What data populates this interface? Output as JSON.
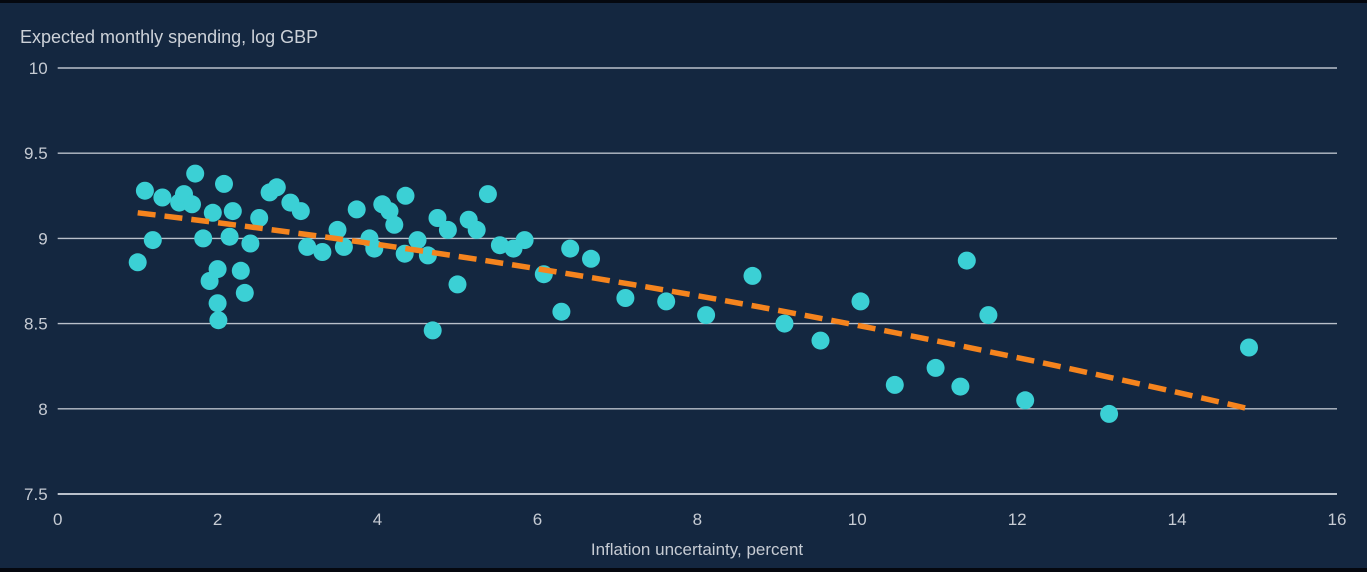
{
  "chart_data": {
    "type": "scatter",
    "title": "Expected monthly spending, log GBP",
    "xlabel": "Inflation uncertainty, percent",
    "ylabel": "",
    "xlim": [
      0,
      16
    ],
    "ylim": [
      7.5,
      10
    ],
    "grid": "horizontal-only",
    "legend": "none",
    "colors": {
      "background": "#142740",
      "points": "#3BD0D5",
      "trend": "#F5841E",
      "gridline": "#b9c0ca",
      "text": "#c6cbd3"
    },
    "xticks": [
      {
        "v": 0,
        "label": "0"
      },
      {
        "v": 2,
        "label": "2"
      },
      {
        "v": 4,
        "label": "4"
      },
      {
        "v": 6,
        "label": "6"
      },
      {
        "v": 8,
        "label": "8"
      },
      {
        "v": 10,
        "label": "10"
      },
      {
        "v": 12,
        "label": "12"
      },
      {
        "v": 14,
        "label": "14"
      },
      {
        "v": 16,
        "label": "16"
      }
    ],
    "yticks": [
      {
        "v": 10,
        "label": "10"
      },
      {
        "v": 9.5,
        "label": "9.5"
      },
      {
        "v": 9,
        "label": "9"
      },
      {
        "v": 8.5,
        "label": "8.5"
      },
      {
        "v": 8,
        "label": "8"
      },
      {
        "v": 7.5,
        "label": "7.5"
      }
    ],
    "series": [
      {
        "name": "observations",
        "type": "scatter",
        "marker_radius": 9,
        "points": [
          [
            1.0,
            8.86
          ],
          [
            1.09,
            9.28
          ],
          [
            1.19,
            8.99
          ],
          [
            1.31,
            9.24
          ],
          [
            1.52,
            9.21
          ],
          [
            1.58,
            9.26
          ],
          [
            1.68,
            9.2
          ],
          [
            1.72,
            9.38
          ],
          [
            1.82,
            9.0
          ],
          [
            1.9,
            8.75
          ],
          [
            1.94,
            9.15
          ],
          [
            2.0,
            8.82
          ],
          [
            2.0,
            8.62
          ],
          [
            2.01,
            8.52
          ],
          [
            2.08,
            9.32
          ],
          [
            2.15,
            9.01
          ],
          [
            2.19,
            9.16
          ],
          [
            2.29,
            8.81
          ],
          [
            2.34,
            8.68
          ],
          [
            2.41,
            8.97
          ],
          [
            2.52,
            9.12
          ],
          [
            2.65,
            9.27
          ],
          [
            2.74,
            9.3
          ],
          [
            2.91,
            9.21
          ],
          [
            3.04,
            9.16
          ],
          [
            3.12,
            8.95
          ],
          [
            3.31,
            8.92
          ],
          [
            3.5,
            9.05
          ],
          [
            3.58,
            8.95
          ],
          [
            3.74,
            9.17
          ],
          [
            3.9,
            9.0
          ],
          [
            3.96,
            8.94
          ],
          [
            4.06,
            9.2
          ],
          [
            4.15,
            9.16
          ],
          [
            4.21,
            9.08
          ],
          [
            4.34,
            8.91
          ],
          [
            4.35,
            9.25
          ],
          [
            4.5,
            8.99
          ],
          [
            4.63,
            8.9
          ],
          [
            4.69,
            8.46
          ],
          [
            4.75,
            9.12
          ],
          [
            4.88,
            9.05
          ],
          [
            5.0,
            8.73
          ],
          [
            5.14,
            9.11
          ],
          [
            5.24,
            9.05
          ],
          [
            5.38,
            9.26
          ],
          [
            5.53,
            8.96
          ],
          [
            5.7,
            8.94
          ],
          [
            5.84,
            8.99
          ],
          [
            6.08,
            8.79
          ],
          [
            6.3,
            8.57
          ],
          [
            6.41,
            8.94
          ],
          [
            6.67,
            8.88
          ],
          [
            7.1,
            8.65
          ],
          [
            7.61,
            8.63
          ],
          [
            8.11,
            8.55
          ],
          [
            8.69,
            8.78
          ],
          [
            9.09,
            8.5
          ],
          [
            9.54,
            8.4
          ],
          [
            10.04,
            8.63
          ],
          [
            10.47,
            8.14
          ],
          [
            10.98,
            8.24
          ],
          [
            11.29,
            8.13
          ],
          [
            11.37,
            8.87
          ],
          [
            11.64,
            8.55
          ],
          [
            12.1,
            8.05
          ],
          [
            13.15,
            7.97
          ],
          [
            14.9,
            8.36
          ]
        ]
      },
      {
        "name": "fitted-trend",
        "type": "dashed-curve",
        "start": [
          1.0,
          9.15
        ],
        "control": [
          7.95,
          8.76
        ],
        "end": [
          14.9,
          8.0
        ],
        "stroke_width": 5.5,
        "dash": [
          18,
          9
        ]
      }
    ]
  }
}
